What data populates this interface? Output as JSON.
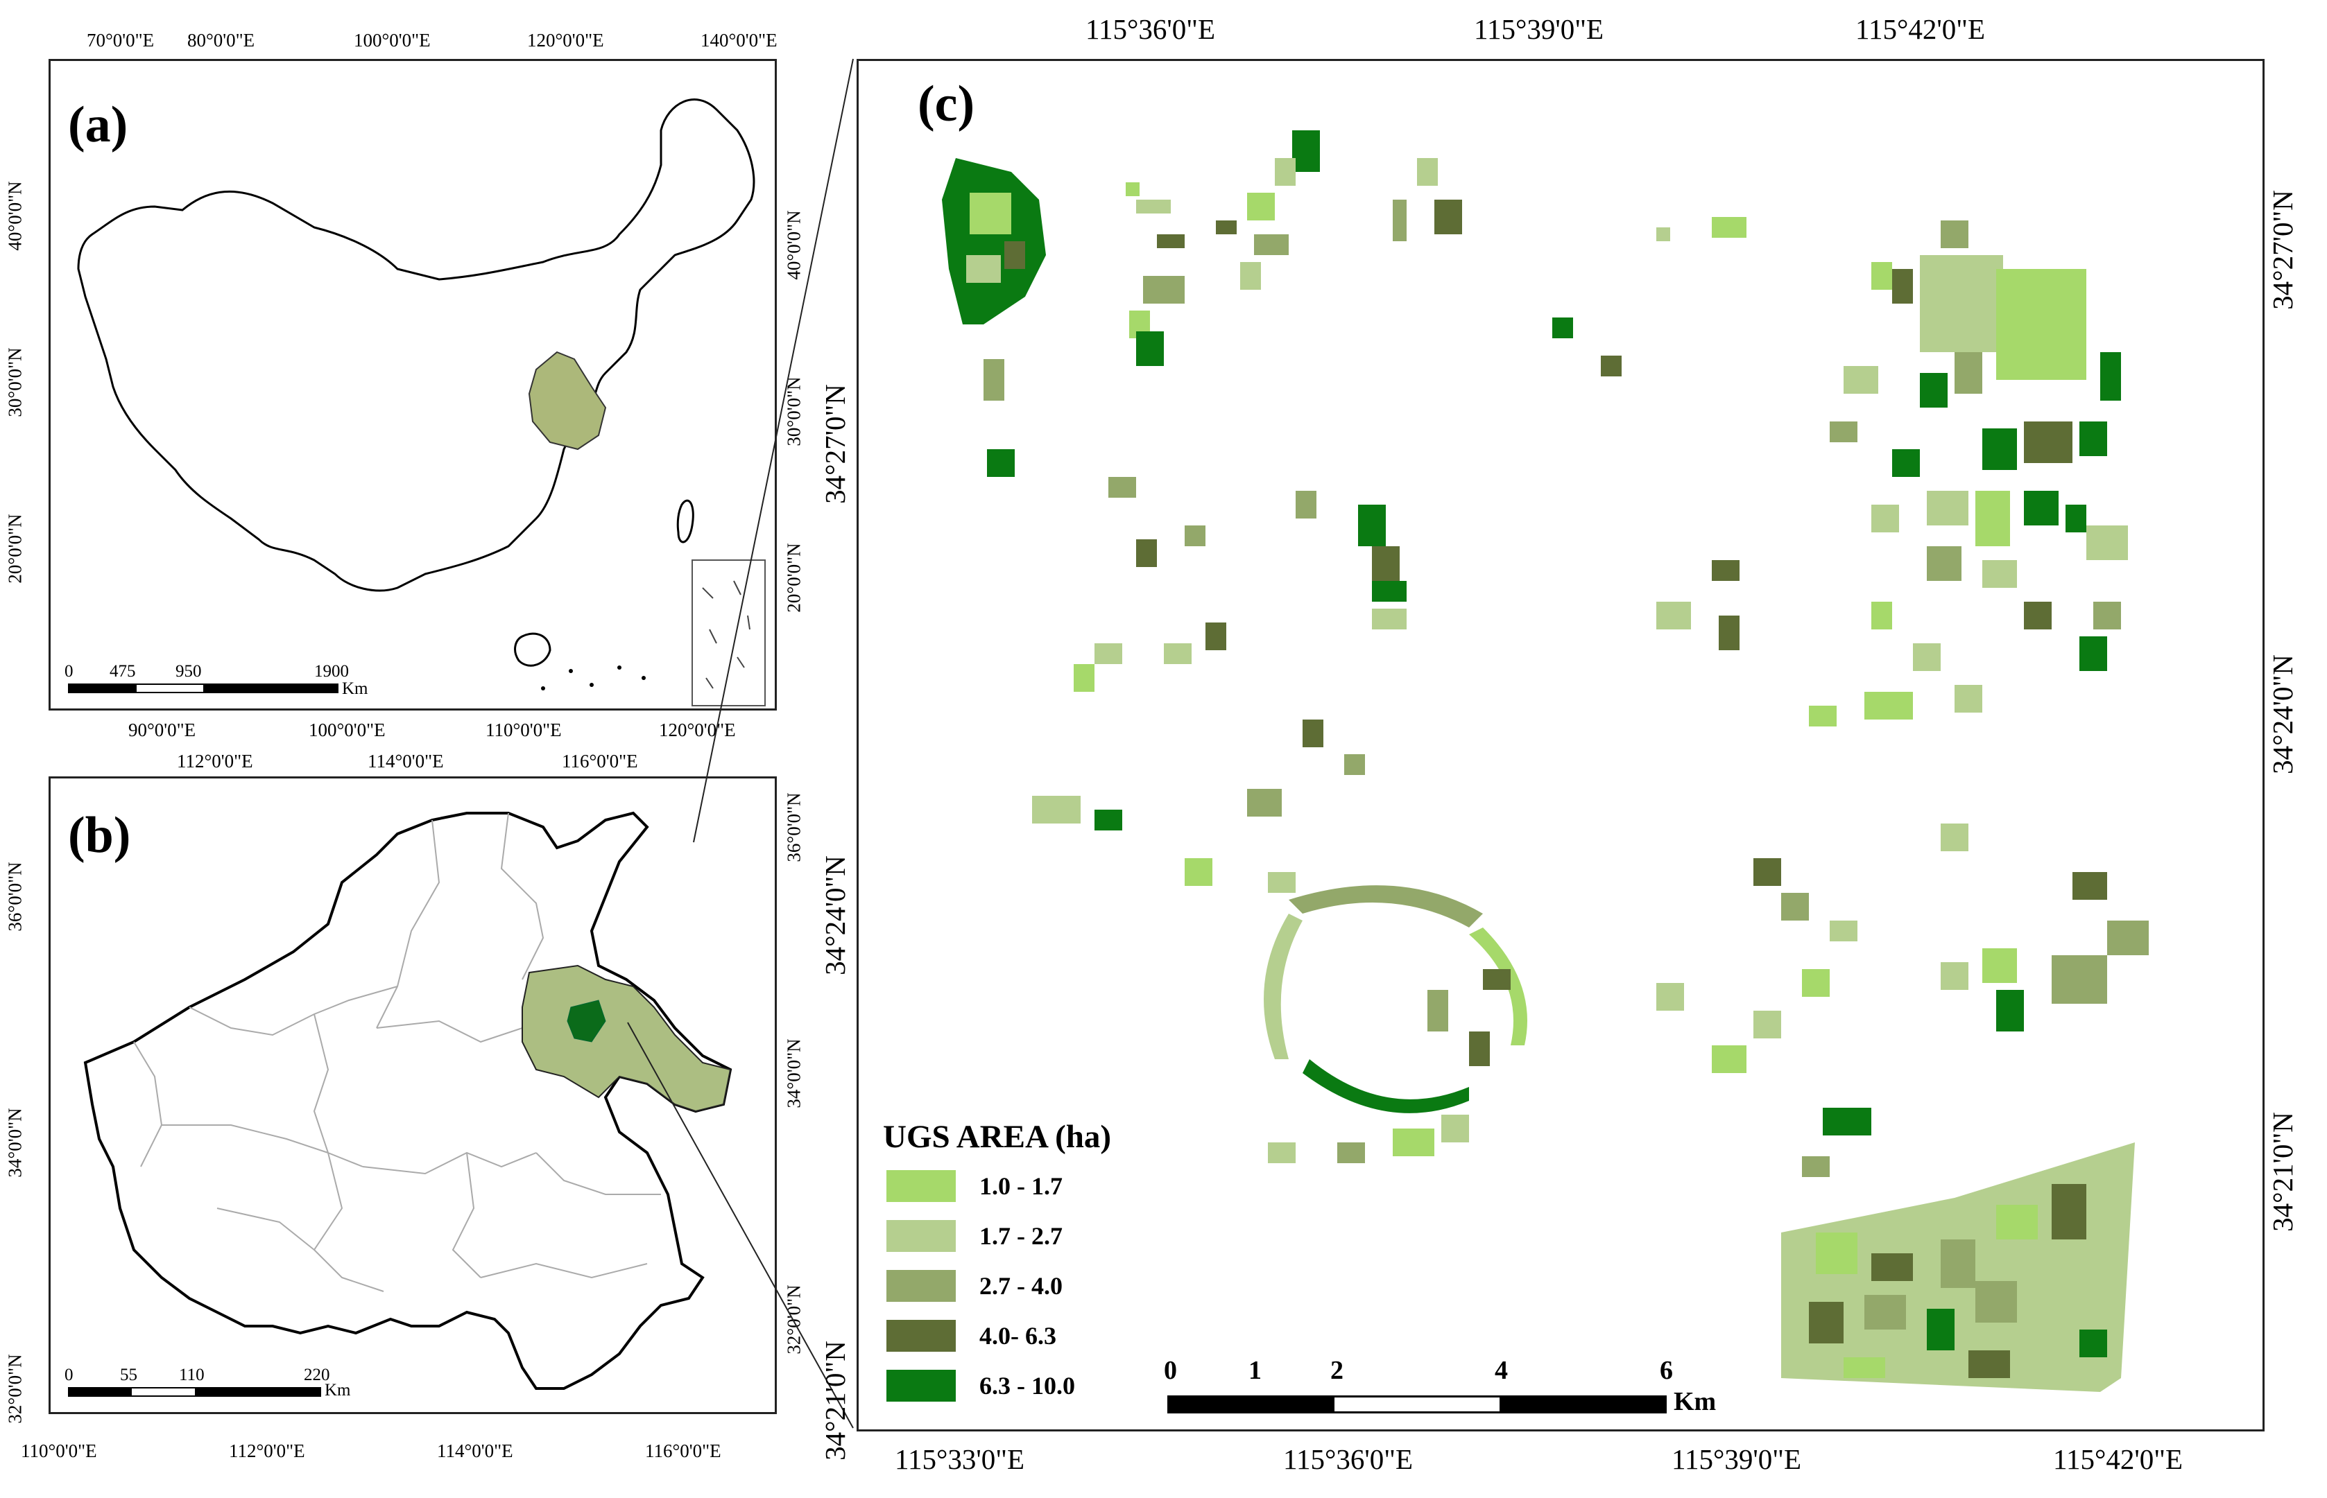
{
  "panel_a": {
    "label": "(a)",
    "top_ticks": [
      "70°0'0\"E",
      "80°0'0\"E",
      "100°0'0\"E",
      "120°0'0\"E",
      "140°0'0\"E"
    ],
    "bottom_ticks": [
      "90°0'0\"E",
      "100°0'0\"E",
      "110°0'0\"E",
      "120°0'0\"E"
    ],
    "left_ticks": [
      "40°0'0\"N",
      "30°0'0\"N",
      "20°0'0\"N"
    ],
    "right_ticks": [
      "40°0'0\"N",
      "30°0'0\"N",
      "20°0'0\"N"
    ],
    "scale_numbers": [
      "0",
      "475",
      "950",
      "1900"
    ],
    "scale_unit": "Km"
  },
  "panel_b": {
    "label": "(b)",
    "top_ticks": [
      "112°0'0\"E",
      "114°0'0\"E",
      "116°0'0\"E"
    ],
    "bottom_ticks": [
      "110°0'0\"E",
      "112°0'0\"E",
      "114°0'0\"E",
      "116°0'0\"E"
    ],
    "left_ticks": [
      "36°0'0\"N",
      "34°0'0\"N",
      "32°0'0\"N"
    ],
    "right_ticks": [
      "36°0'0\"N",
      "34°0'0\"N",
      "32°0'0\"N"
    ],
    "scale_numbers": [
      "0",
      "55",
      "110",
      "220"
    ],
    "scale_unit": "Km"
  },
  "panel_c": {
    "label": "(c)",
    "top_ticks": [
      "115°36'0\"E",
      "115°39'0\"E",
      "115°42'0\"E"
    ],
    "bottom_ticks": [
      "115°33'0\"E",
      "115°36'0\"E",
      "115°39'0\"E",
      "115°42'0\"E"
    ],
    "left_ticks": [
      "34°27'0\"N",
      "34°24'0\"N",
      "34°21'0\"N"
    ],
    "right_ticks": [
      "34°27'0\"N",
      "34°24'0\"N",
      "34°21'0\"N"
    ],
    "scale_numbers": [
      "0",
      "1",
      "2",
      "4",
      "6"
    ],
    "scale_unit": "Km"
  },
  "legend": {
    "title": "UGS AREA (ha)",
    "items": [
      {
        "label": "1.0 - 1.7",
        "color": "#a6d96a"
      },
      {
        "label": "1.7 - 2.7",
        "color": "#b5cf8f"
      },
      {
        "label": "2.7 - 4.0",
        "color": "#93a86a"
      },
      {
        "label": "4.0- 6.3",
        "color": "#5e6d35"
      },
      {
        "label": "6.3 - 10.0",
        "color": "#0a7a12"
      }
    ]
  },
  "colors": {
    "province_fill": "#acb87a",
    "city_fill": "#acbe82",
    "study_area_fill": "#0b6b1a"
  }
}
